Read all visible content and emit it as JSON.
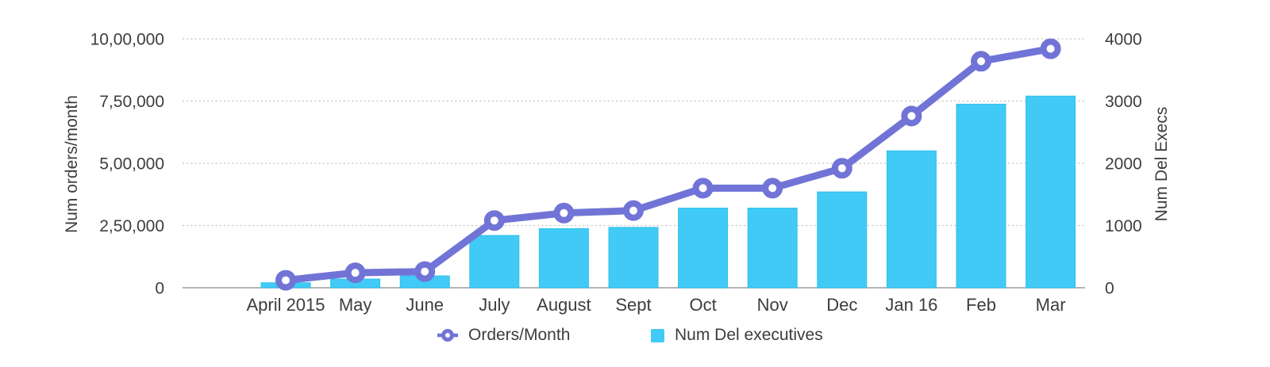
{
  "chart_data": {
    "type": "combo-line-bar",
    "categories": [
      "April 2015",
      "May",
      "June",
      "July",
      "August",
      "Sept",
      "Oct",
      "Nov",
      "Dec",
      "Jan 16",
      "Feb",
      "Mar"
    ],
    "series": [
      {
        "name": "Orders/Month",
        "type": "line",
        "axis": "left",
        "color": "#7174d6",
        "marker_fill": "#ffffff",
        "values": [
          30000,
          60000,
          65000,
          270000,
          300000,
          310000,
          400000,
          400000,
          480000,
          690000,
          910000,
          960000
        ]
      },
      {
        "name": "Num Del executives",
        "type": "bar",
        "axis": "right",
        "color": "#41caf5",
        "border_color": "#2fc0f0",
        "values": [
          80,
          140,
          190,
          840,
          950,
          970,
          1280,
          1280,
          1540,
          2200,
          2950,
          3080
        ]
      }
    ],
    "left_axis": {
      "title": "Num orders/month",
      "max": 1000000,
      "ticks": [
        {
          "value": 0,
          "label": "0"
        },
        {
          "value": 250000,
          "label": "2,50,000"
        },
        {
          "value": 500000,
          "label": "5,00,000"
        },
        {
          "value": 750000,
          "label": "7,50,000"
        },
        {
          "value": 1000000,
          "label": "10,00,000"
        }
      ]
    },
    "right_axis": {
      "title": "Num Del Execs",
      "max": 4000,
      "ticks": [
        {
          "value": 0,
          "label": "0"
        },
        {
          "value": 1000,
          "label": "1000"
        },
        {
          "value": 2000,
          "label": "2000"
        },
        {
          "value": 3000,
          "label": "3000"
        },
        {
          "value": 4000,
          "label": "4000"
        }
      ]
    },
    "grid": {
      "horizontal": true,
      "style": "dotted",
      "color": "#c2c2c2"
    },
    "axis_line_color": "#ababab",
    "text_color": "#3d3d3d",
    "legend": {
      "position": "bottom",
      "items": [
        {
          "label": "Orders/Month",
          "series": 0
        },
        {
          "label": "Num Del executives",
          "series": 1
        }
      ]
    }
  }
}
